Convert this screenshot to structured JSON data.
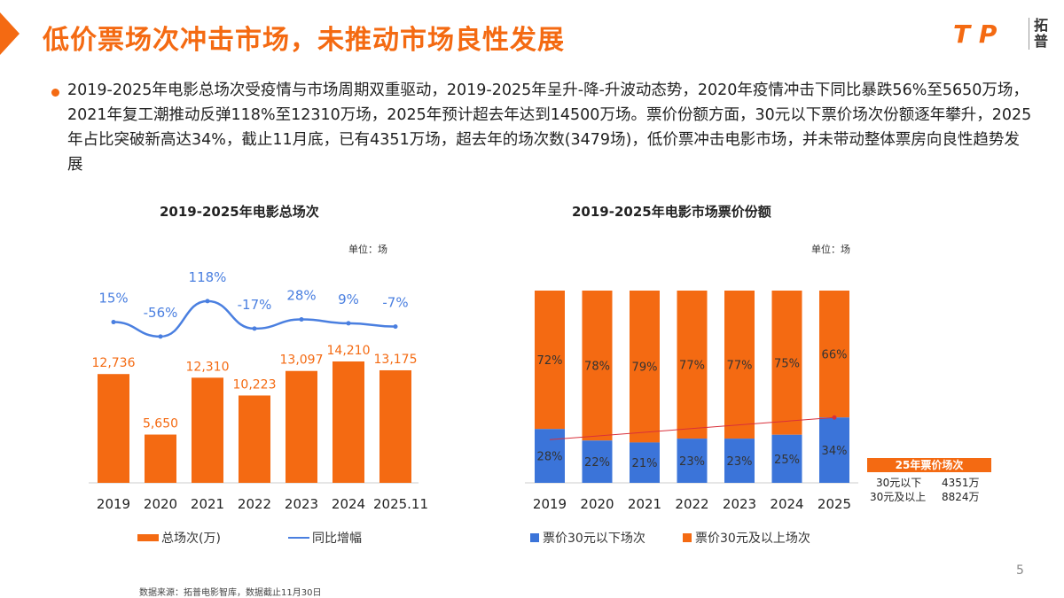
{
  "header": {
    "title": "低价票场次冲击市场，未推动市场良性发展",
    "logo": "T P",
    "logo_cn": "拓普"
  },
  "summary": "2019-2025年电影总场次受疫情与市场周期双重驱动，2019-2025年呈升-降-升波动态势，2020年疫情冲击下同比暴跌56%至5650万场，2021年复工潮推动反弹118%至12310万场，2025年预计超去年达到14500万场。票价份额方面，30元以下票价场次份额逐年攀升，2025年占比突破新高达34%，截止11月底，已有4351万场，超去年的场次数(3479场)，低价票冲击电影市场，并未带动整体票房向良性趋势发展",
  "chart_data": [
    {
      "type": "bar+line",
      "title": "2019-2025年电影总场次",
      "unit": "单位：场",
      "categories": [
        "2019",
        "2020",
        "2021",
        "2022",
        "2023",
        "2024",
        "2025.11"
      ],
      "series": [
        {
          "name": "总场次(万)",
          "type": "bar",
          "values": [
            12736,
            5650,
            12310,
            10223,
            13097,
            14210,
            13175
          ],
          "labels": [
            "12,736",
            "5,650",
            "12,310",
            "10,223",
            "13,097",
            "14,210",
            "13,175"
          ],
          "color": "#f46a12"
        },
        {
          "name": "同比增幅",
          "type": "line",
          "values": [
            15,
            -56,
            118,
            -17,
            28,
            9,
            -7
          ],
          "labels": [
            "15%",
            "-56%",
            "118%",
            "-17%",
            "28%",
            "9%",
            "-7%"
          ],
          "color": "#4a7fe0"
        }
      ],
      "legend": "bottom"
    },
    {
      "type": "stacked-bar-100",
      "title": "2019-2025年电影市场票价份额",
      "unit": "单位：场",
      "categories": [
        "2019",
        "2020",
        "2021",
        "2022",
        "2023",
        "2024",
        "2025"
      ],
      "series": [
        {
          "name": "票价30元以下场次",
          "values": [
            28,
            22,
            21,
            23,
            23,
            25,
            34
          ],
          "color": "#3b74d9"
        },
        {
          "name": "票价30元及以上场次",
          "values": [
            72,
            78,
            79,
            77,
            77,
            75,
            66
          ],
          "color": "#f46a12"
        }
      ],
      "trendline_color": "#d9303a",
      "legend": "bottom"
    }
  ],
  "side_table": {
    "header": "25年票价场次",
    "rows": [
      {
        "label": "30元以下",
        "value": "4351万"
      },
      {
        "label": "30元及以上",
        "value": "8824万"
      }
    ]
  },
  "footer": {
    "source": "数据来源：拓普电影智库，数据截止11月30日",
    "page": "5"
  }
}
